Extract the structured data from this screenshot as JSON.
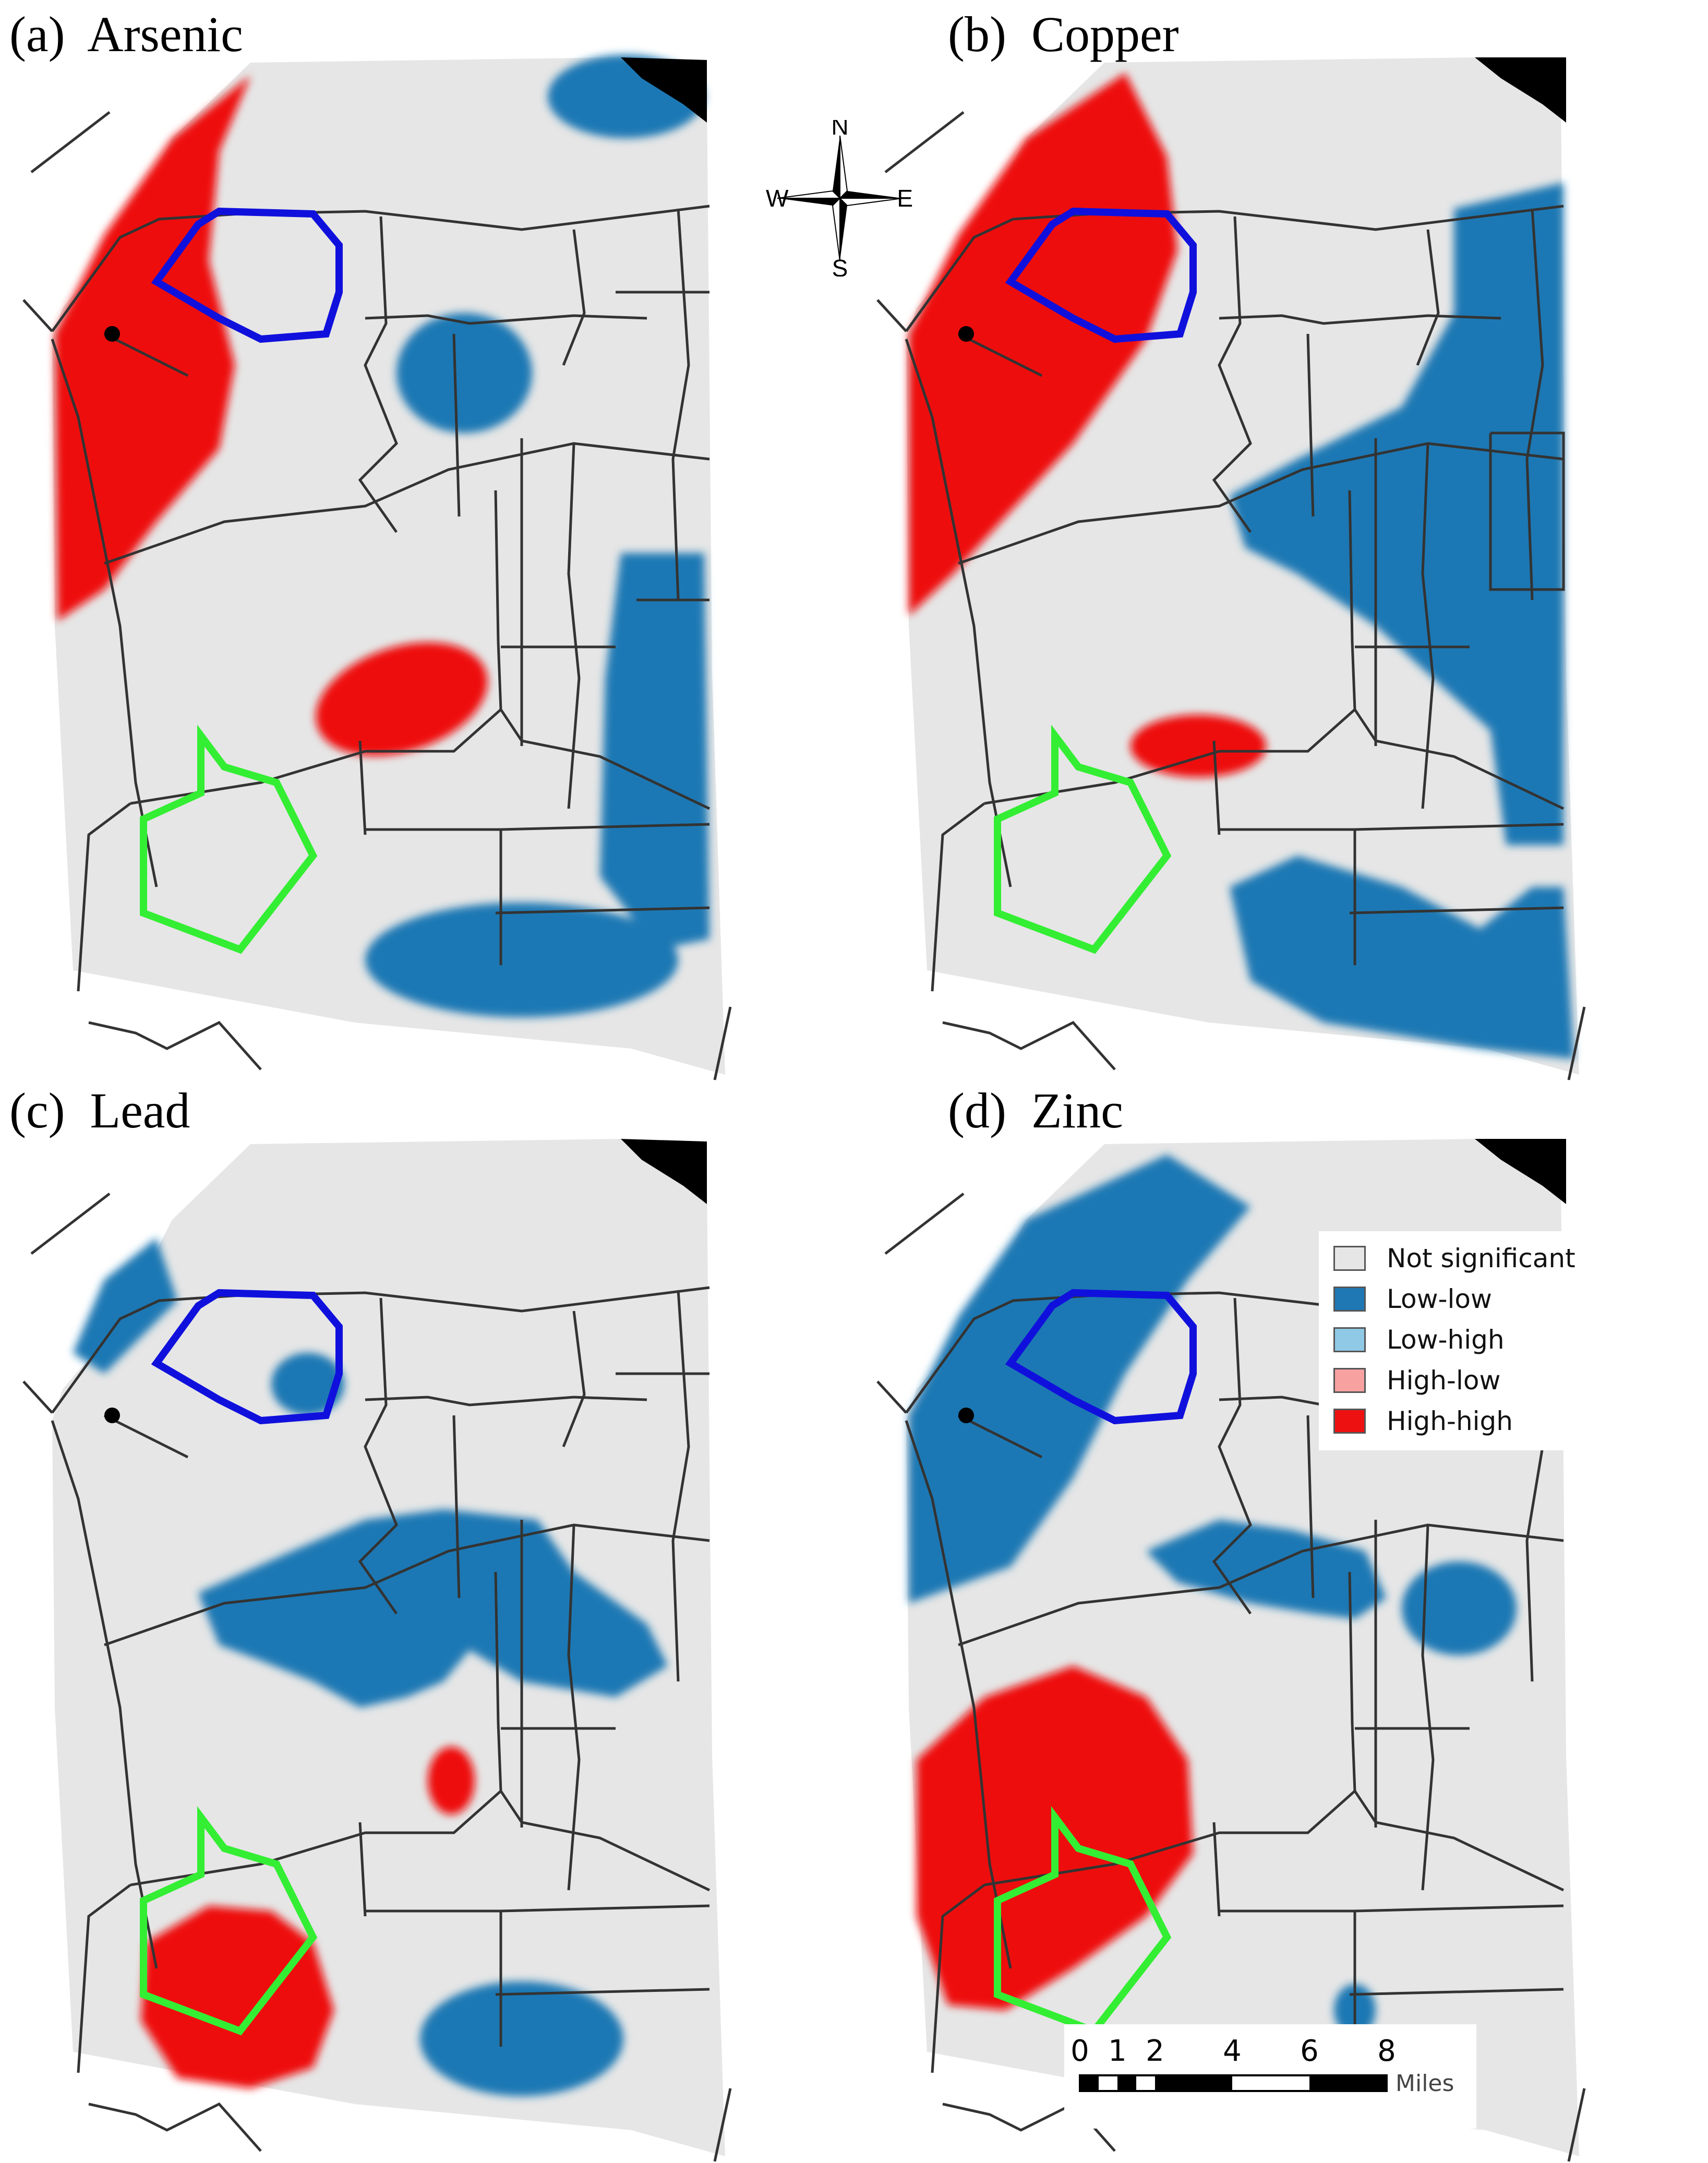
{
  "panels": [
    {
      "id": "a",
      "label": "(a)  Arsenic"
    },
    {
      "id": "b",
      "label": "(b)  Copper"
    },
    {
      "id": "c",
      "label": "(c)  Lead"
    },
    {
      "id": "d",
      "label": "(d)  Zinc"
    }
  ],
  "compass": {
    "n": "N",
    "s": "S",
    "e": "E",
    "w": "W"
  },
  "legend": {
    "items": [
      {
        "label": "Not significant",
        "color": "#e6e6e6"
      },
      {
        "label": "Low-low",
        "color": "#1f78b4"
      },
      {
        "label": "Low-high",
        "color": "#8fc9e6"
      },
      {
        "label": "High-low",
        "color": "#f7a1a1"
      },
      {
        "label": "High-high",
        "color": "#ee1111"
      }
    ]
  },
  "scale_bar": {
    "ticks": [
      "0",
      "1",
      "2",
      "4",
      "6",
      "8"
    ],
    "unit": "Miles"
  },
  "colors": {
    "not_significant": "#e6e6e6",
    "low_low": "#1f78b4",
    "high_high": "#ee1111",
    "site_blue_outline": "#1010dd",
    "site_green_outline": "#33ee33",
    "roads": "#333333"
  }
}
